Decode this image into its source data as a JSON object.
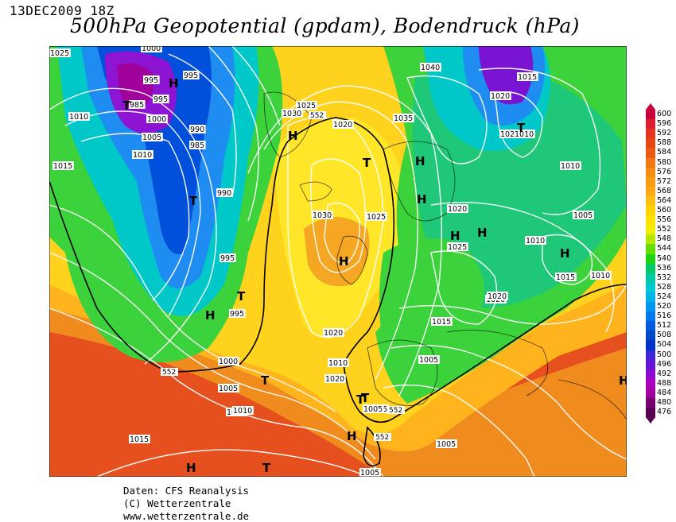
{
  "header": {
    "datetime": "13DEC2009 18Z",
    "title": "500hPa Geopotential (gpdam), Bodendruck (hPa)"
  },
  "footer": {
    "line1": "Daten: CFS Reanalysis",
    "line2": "(C) Wetterzentrale",
    "line3": "www.wetterzentrale.de"
  },
  "legend": {
    "values": [
      "600",
      "596",
      "592",
      "588",
      "584",
      "580",
      "576",
      "572",
      "568",
      "564",
      "560",
      "556",
      "552",
      "548",
      "544",
      "540",
      "536",
      "532",
      "528",
      "524",
      "520",
      "516",
      "512",
      "508",
      "504",
      "500",
      "496",
      "492",
      "488",
      "484",
      "480",
      "476"
    ],
    "colors": [
      "#c8003c",
      "#dc1e32",
      "#e6321e",
      "#e64614",
      "#ec5a14",
      "#f07814",
      "#f58c14",
      "#fa9b14",
      "#ffaa14",
      "#ffbe14",
      "#ffd200",
      "#ffe100",
      "#f0eb00",
      "#b4e600",
      "#64dc00",
      "#1ed214",
      "#00c864",
      "#00c8a0",
      "#00c8d2",
      "#00b4e6",
      "#0096f0",
      "#0078f0",
      "#005adc",
      "#0046c8",
      "#0032c8",
      "#3c28d2",
      "#6414d2",
      "#8c0ad2",
      "#aa00be",
      "#a0009b",
      "#78006e",
      "#5a0050"
    ]
  },
  "map": {
    "contour_label": "552",
    "pressure_labels": [
      "1025",
      "1000",
      "995",
      "995",
      "985",
      "995",
      "1000",
      "990",
      "985",
      "1010",
      "1005",
      "1010",
      "1015",
      "990",
      "995",
      "995",
      "1000",
      "1005",
      "1010",
      "1015",
      "1025",
      "1030",
      "1020",
      "1035",
      "1040",
      "1020",
      "1015",
      "1020",
      "1010",
      "1010",
      "1030",
      "1025",
      "1020",
      "1015",
      "1005",
      "1020",
      "1020",
      "1005",
      "1010",
      "1005",
      "1020",
      "1025",
      "1020",
      "1010",
      "1005",
      "1005",
      "1005",
      "1015",
      "1010",
      "1010"
    ],
    "centers": [
      {
        "label": "H",
        "kind": "high"
      },
      {
        "label": "T",
        "kind": "low"
      },
      {
        "label": "H",
        "kind": "high"
      },
      {
        "label": "T",
        "kind": "low"
      },
      {
        "label": "H",
        "kind": "high"
      },
      {
        "label": "T",
        "kind": "low"
      },
      {
        "label": "H",
        "kind": "high"
      },
      {
        "label": "T",
        "kind": "low"
      },
      {
        "label": "H",
        "kind": "high"
      },
      {
        "label": "H",
        "kind": "high"
      },
      {
        "label": "H",
        "kind": "high"
      },
      {
        "label": "T",
        "kind": "low"
      },
      {
        "label": "H",
        "kind": "high"
      },
      {
        "label": "T",
        "kind": "low"
      },
      {
        "label": "T",
        "kind": "low"
      },
      {
        "label": "H",
        "kind": "high"
      },
      {
        "label": "T",
        "kind": "low"
      },
      {
        "label": "H",
        "kind": "high"
      },
      {
        "label": "H",
        "kind": "high"
      },
      {
        "label": "T",
        "kind": "low"
      },
      {
        "label": "H",
        "kind": "high"
      }
    ]
  }
}
